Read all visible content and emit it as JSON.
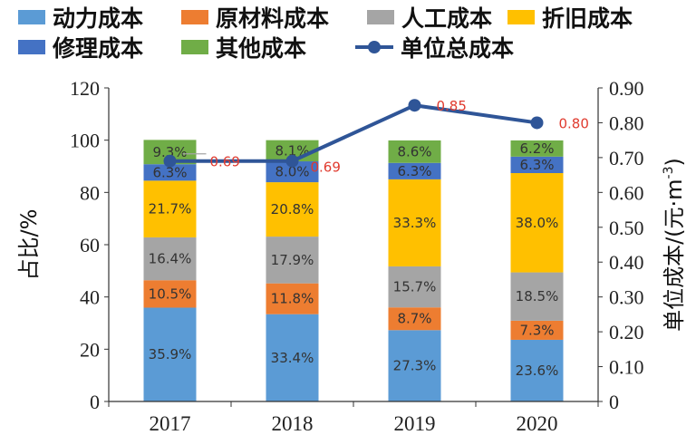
{
  "chart_data": {
    "type": "bar",
    "stacked": true,
    "categories": [
      "2017",
      "2018",
      "2019",
      "2020"
    ],
    "series": [
      {
        "name": "动力成本",
        "color": "#5b9bd5",
        "values": [
          35.9,
          33.4,
          27.3,
          23.6
        ],
        "labels": [
          "35.9%",
          "33.4%",
          "27.3%",
          "23.6%"
        ]
      },
      {
        "name": "原材料成本",
        "color": "#ed7d31",
        "values": [
          10.5,
          11.8,
          8.7,
          7.3
        ],
        "labels": [
          "10.5%",
          "11.8%",
          "8.7%",
          "7.3%"
        ]
      },
      {
        "name": "人工成本",
        "color": "#a5a5a5",
        "values": [
          16.4,
          17.9,
          15.7,
          18.5
        ],
        "labels": [
          "16.4%",
          "17.9%",
          "15.7%",
          "18.5%"
        ]
      },
      {
        "name": "折旧成本",
        "color": "#ffc000",
        "values": [
          21.7,
          20.8,
          33.3,
          38.0
        ],
        "labels": [
          "21.7%",
          "20.8%",
          "33.3%",
          "38.0%"
        ]
      },
      {
        "name": "修理成本",
        "color": "#4472c4",
        "values": [
          6.3,
          8.0,
          6.3,
          6.3
        ],
        "labels": [
          "6.3%",
          "8.0%",
          "6.3%",
          "6.3%"
        ]
      },
      {
        "name": "其他成本",
        "color": "#70ad47",
        "values": [
          9.3,
          8.1,
          8.6,
          6.2
        ],
        "labels": [
          "9.3%",
          "8.1%",
          "8.6%",
          "6.2%"
        ]
      }
    ],
    "line": {
      "name": "单位总成本",
      "color": "#2f5597",
      "values": [
        0.69,
        0.69,
        0.85,
        0.8
      ],
      "labels": [
        "0.69",
        "0.69",
        "0.85",
        "0.80"
      ]
    },
    "ylabel": "占比/%",
    "ylim": [
      0,
      120
    ],
    "yticks": [
      "0",
      "20",
      "40",
      "60",
      "80",
      "100",
      "120"
    ],
    "y2label_main": "单位成本/(元·m",
    "y2label_sup": "-3",
    "y2label_end": ")",
    "y2lim": [
      0,
      0.9
    ],
    "y2ticks": [
      "0",
      "0.10",
      "0.20",
      "0.30",
      "0.40",
      "0.50",
      "0.60",
      "0.70",
      "0.80",
      "0.90"
    ],
    "legend_position": "top",
    "grid": false
  }
}
